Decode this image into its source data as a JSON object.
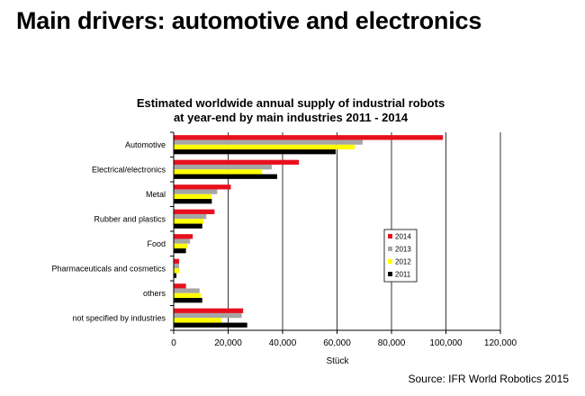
{
  "page": {
    "title": "Main drivers: automotive and electronics",
    "source": "Source: IFR World Robotics 2015"
  },
  "chart_data": {
    "type": "bar",
    "orientation": "horizontal",
    "title": "Estimated worldwide annual supply of industrial robots",
    "subtitle": "at year-end by main industries 2011 - 2014",
    "xlabel": "Stück",
    "ylabel": "",
    "xlim": [
      0,
      120000
    ],
    "xticks": [
      0,
      20000,
      40000,
      60000,
      80000,
      100000,
      120000
    ],
    "xtick_labels": [
      "0",
      "20,000",
      "40,000",
      "60,000",
      "80,000",
      "100,000",
      "120,000"
    ],
    "grid": true,
    "legend_position": "right",
    "categories": [
      "Automotive",
      "Electrical/electronics",
      "Metal",
      "Rubber and plastics",
      "Food",
      "Pharmaceuticals and cosmetics",
      "others",
      "not specified by industries"
    ],
    "series": [
      {
        "name": "2014",
        "color": "#e8101e",
        "values": [
          98900,
          46000,
          21000,
          15000,
          7000,
          2000,
          4500,
          25500
        ]
      },
      {
        "name": "2013",
        "color": "#a6a6a6",
        "values": [
          69400,
          36000,
          16000,
          12000,
          6000,
          2000,
          9500,
          25000
        ]
      },
      {
        "name": "2012",
        "color": "#ffff00",
        "values": [
          66500,
          32500,
          14000,
          11000,
          5000,
          2000,
          10000,
          17500
        ]
      },
      {
        "name": "2011",
        "color": "#000000",
        "values": [
          59500,
          38000,
          14000,
          10500,
          4500,
          1000,
          10500,
          27000
        ]
      }
    ]
  }
}
